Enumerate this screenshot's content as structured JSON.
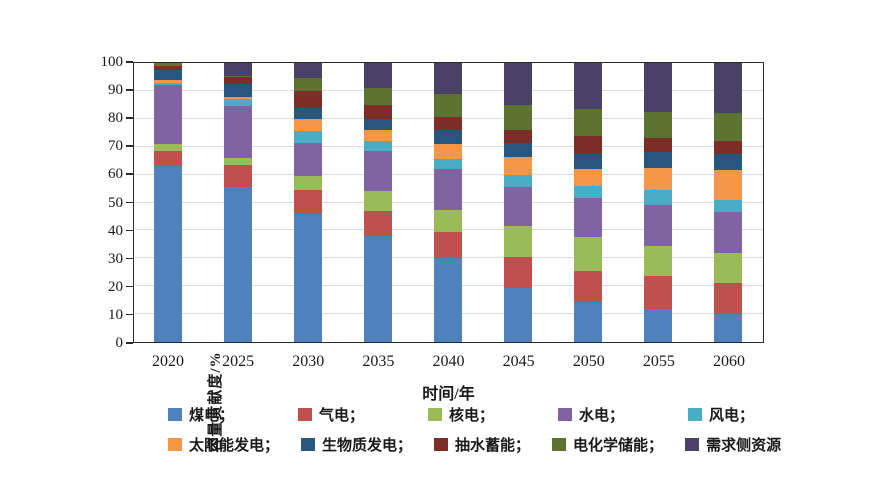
{
  "figure": {
    "ylabel": "容量贡献度/%",
    "xlabel": "时间/年"
  },
  "chart_data": {
    "type": "bar",
    "stacked": true,
    "title": "",
    "xlabel": "时间/年",
    "ylabel": "容量贡献度/%",
    "ylim": [
      0,
      100
    ],
    "yticks": [
      0,
      10,
      20,
      30,
      40,
      50,
      60,
      70,
      80,
      90,
      100
    ],
    "grid": true,
    "legend_position": "bottom",
    "categories": [
      "2020",
      "2025",
      "2030",
      "2035",
      "2040",
      "2045",
      "2050",
      "2055",
      "2060"
    ],
    "series": [
      {
        "name": "煤电",
        "color": "#4f81bd",
        "values": [
          63,
          55.5,
          46,
          38,
          30,
          19.5,
          14.5,
          12,
          10
        ]
      },
      {
        "name": "气电",
        "color": "#c0504d",
        "values": [
          5.5,
          8,
          8.5,
          9,
          9.5,
          11,
          11,
          11.5,
          11
        ]
      },
      {
        "name": "核电",
        "color": "#9bbb59",
        "values": [
          2.5,
          2.5,
          5,
          7,
          8,
          11,
          12,
          11,
          11
        ]
      },
      {
        "name": "水电",
        "color": "#8064a2",
        "values": [
          21,
          18.5,
          12,
          14.5,
          14.5,
          14,
          14,
          14.5,
          14.5
        ]
      },
      {
        "name": "风电",
        "color": "#4bacc6",
        "values": [
          1,
          2.5,
          4,
          3.5,
          3.5,
          4.5,
          4.5,
          5.5,
          4.5
        ]
      },
      {
        "name": "太阳能发电",
        "color": "#f79646",
        "values": [
          1,
          1,
          4.5,
          4,
          5.5,
          6.5,
          6,
          8,
          10.5
        ]
      },
      {
        "name": "生物质发电",
        "color": "#27567f",
        "values": [
          3.5,
          4.5,
          4,
          4,
          5,
          5,
          5.5,
          5.5,
          6
        ]
      },
      {
        "name": "抽水蓄能",
        "color": "#7c2d26",
        "values": [
          1.5,
          2.5,
          6,
          5,
          4.5,
          4.5,
          6.5,
          5,
          4.5
        ]
      },
      {
        "name": "电化学储能",
        "color": "#5d7332",
        "values": [
          1,
          0.5,
          4.5,
          6,
          8.5,
          9,
          9.5,
          9.5,
          10
        ]
      },
      {
        "name": "需求侧资源",
        "color": "#4a4166",
        "values": [
          0,
          4.5,
          5.5,
          9,
          11,
          15,
          16.5,
          17.5,
          18
        ]
      }
    ]
  },
  "legend": {
    "rows": [
      [
        {
          "label": "煤电；",
          "color": "#4f81bd"
        },
        {
          "label": "气电；",
          "color": "#c0504d"
        },
        {
          "label": "核电；",
          "color": "#9bbb59"
        },
        {
          "label": "水电；",
          "color": "#8064a2"
        },
        {
          "label": "风电；",
          "color": "#4bacc6"
        }
      ],
      [
        {
          "label": "太阳能发电；",
          "color": "#f79646"
        },
        {
          "label": "生物质发电；",
          "color": "#27567f"
        },
        {
          "label": "抽水蓄能；",
          "color": "#7c2d26"
        },
        {
          "label": "电化学储能；",
          "color": "#5d7332"
        },
        {
          "label": "需求侧资源",
          "color": "#4a4166"
        }
      ]
    ]
  }
}
